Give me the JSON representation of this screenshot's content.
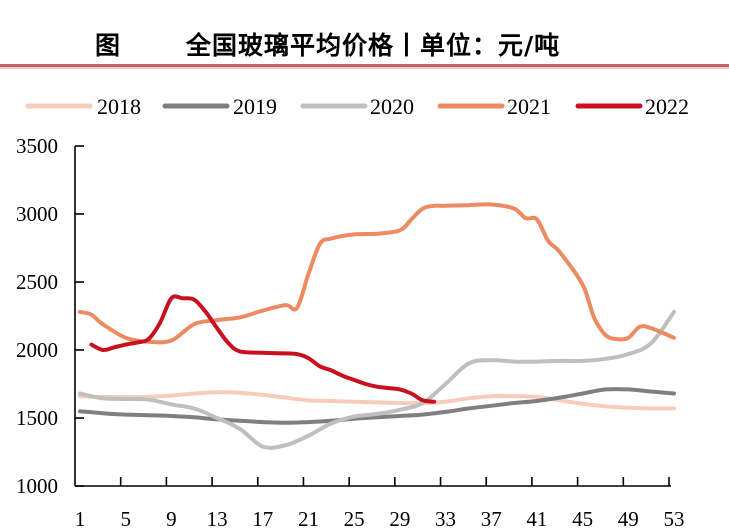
{
  "header": {
    "fig_label": "图",
    "title": "全国玻璃平均价格丨单位：元/吨"
  },
  "chart_data": {
    "type": "line",
    "title": "全国玻璃平均价格丨单位：元/吨",
    "xlabel": "",
    "ylabel": "",
    "xlim": [
      1,
      53
    ],
    "ylim": [
      1000,
      3500
    ],
    "x_ticks": [
      1,
      5,
      9,
      13,
      17,
      21,
      25,
      29,
      33,
      37,
      41,
      45,
      49,
      53
    ],
    "y_ticks": [
      1000,
      1500,
      2000,
      2500,
      3000,
      3500
    ],
    "grid": false,
    "legend_position": "top",
    "series": [
      {
        "name": "2018",
        "color": "#f6cdbb",
        "x": [
          1,
          3,
          5,
          7,
          9,
          11,
          13,
          15,
          17,
          19,
          21,
          23,
          25,
          27,
          29,
          31,
          33,
          35,
          37,
          39,
          41,
          43,
          45,
          47,
          49,
          51,
          53
        ],
        "values": [
          1660,
          1655,
          1655,
          1655,
          1665,
          1680,
          1690,
          1685,
          1670,
          1650,
          1630,
          1625,
          1620,
          1615,
          1610,
          1610,
          1620,
          1645,
          1660,
          1660,
          1655,
          1630,
          1605,
          1585,
          1575,
          1570,
          1570
        ]
      },
      {
        "name": "2019",
        "color": "#7f7f7f",
        "x": [
          1,
          3,
          5,
          7,
          9,
          11,
          13,
          15,
          17,
          19,
          21,
          23,
          25,
          27,
          29,
          31,
          33,
          35,
          37,
          39,
          41,
          43,
          45,
          47,
          49,
          51,
          53
        ],
        "values": [
          1550,
          1535,
          1525,
          1520,
          1515,
          1505,
          1490,
          1480,
          1470,
          1465,
          1470,
          1480,
          1495,
          1505,
          1515,
          1525,
          1545,
          1570,
          1590,
          1610,
          1625,
          1650,
          1680,
          1710,
          1710,
          1695,
          1680
        ]
      },
      {
        "name": "2020",
        "color": "#bfbfbf",
        "x": [
          1,
          3,
          5,
          7,
          9,
          11,
          13,
          15,
          17,
          19,
          21,
          23,
          25,
          27,
          29,
          31,
          33,
          35,
          37,
          39,
          41,
          43,
          45,
          47,
          49,
          51,
          53
        ],
        "values": [
          1680,
          1645,
          1640,
          1635,
          1600,
          1570,
          1500,
          1420,
          1290,
          1300,
          1370,
          1460,
          1510,
          1530,
          1560,
          1610,
          1750,
          1900,
          1925,
          1915,
          1915,
          1920,
          1920,
          1935,
          1970,
          2050,
          2280
        ]
      },
      {
        "name": "2021",
        "color": "#ee8a62",
        "x": [
          1,
          2,
          3,
          5,
          7,
          9,
          11,
          13,
          15,
          17,
          19,
          20,
          21,
          22,
          23,
          25,
          27,
          29,
          30,
          31,
          32,
          33,
          35,
          37,
          39,
          40,
          41,
          42,
          43,
          45,
          46,
          47,
          48,
          49,
          50,
          51,
          53
        ],
        "values": [
          2280,
          2260,
          2190,
          2090,
          2060,
          2070,
          2190,
          2220,
          2240,
          2290,
          2330,
          2310,
          2560,
          2780,
          2820,
          2850,
          2855,
          2880,
          2960,
          3040,
          3060,
          3060,
          3065,
          3070,
          3040,
          2970,
          2960,
          2800,
          2720,
          2480,
          2240,
          2110,
          2080,
          2090,
          2170,
          2160,
          2090
        ]
      },
      {
        "name": "2022",
        "color": "#c8101e",
        "x": [
          2,
          3,
          4,
          5,
          6,
          7,
          8,
          9,
          10,
          11,
          12,
          13,
          14,
          15,
          17,
          19,
          20,
          21,
          22,
          23,
          24,
          25,
          26,
          27,
          28,
          29,
          30,
          31,
          32
        ],
        "values": [
          2040,
          2000,
          2020,
          2040,
          2055,
          2080,
          2200,
          2380,
          2380,
          2370,
          2280,
          2160,
          2050,
          1990,
          1980,
          1975,
          1970,
          1940,
          1880,
          1850,
          1810,
          1780,
          1750,
          1730,
          1720,
          1710,
          1680,
          1630,
          1620
        ]
      }
    ]
  }
}
